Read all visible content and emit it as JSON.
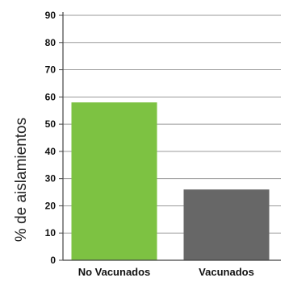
{
  "chart_data": {
    "type": "bar",
    "title": "",
    "xlabel": "",
    "ylabel": "% de aislamientos",
    "categories": [
      "No Vacunados",
      "Vacunados"
    ],
    "values": [
      58,
      26
    ],
    "ylim": [
      0,
      90
    ],
    "yticks": [
      0,
      10,
      20,
      30,
      40,
      50,
      60,
      70,
      80,
      90
    ],
    "ytick_labels": [
      "0",
      "10",
      "20",
      "30",
      "40",
      "50",
      "60",
      "70",
      "80",
      "90"
    ],
    "bar_colors": [
      "#7dc242",
      "#676767"
    ],
    "grid": true
  }
}
